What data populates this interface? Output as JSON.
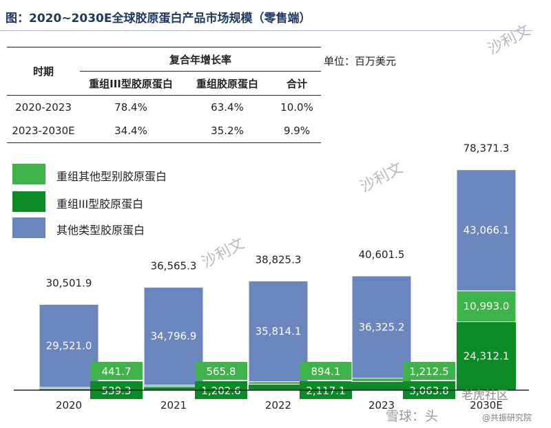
{
  "title": "图：2020~2030E全球胶原蛋白产品市场规模（零售端）",
  "unit": "单位：百万美元",
  "growth_table": {
    "period_header": "时期",
    "group_header": "复合年增长率",
    "columns": [
      "重组III型胶原蛋白",
      "重组胶原蛋白",
      "合计"
    ],
    "rows": [
      {
        "period": "2020-2023",
        "values": [
          "78.4%",
          "63.4%",
          "10.0%"
        ]
      },
      {
        "period": "2023-2030E",
        "values": [
          "34.4%",
          "35.2%",
          "9.9%"
        ]
      }
    ]
  },
  "colors": {
    "other_recombinant": "#3db34a",
    "type3": "#0c8a26",
    "other_types": "#6b86bd",
    "title": "#1f3864"
  },
  "chart_data": {
    "type": "bar",
    "stacked": true,
    "title": "2020~2030E全球胶原蛋白产品市场规模（零售端）",
    "ylabel": "百万美元",
    "categories": [
      "2020",
      "2021",
      "2022",
      "2023",
      "2030E"
    ],
    "series": [
      {
        "name": "重组III型胶原蛋白",
        "values": [
          539.3,
          1202.6,
          2117.1,
          3063.8,
          24312.1
        ],
        "labels": [
          "539.3",
          "1,202.6",
          "2,117.1",
          "3,063.8",
          "24,312.1"
        ]
      },
      {
        "name": "重组其他型别胶原蛋白",
        "values": [
          441.7,
          565.8,
          894.1,
          1212.5,
          10993.0
        ],
        "labels": [
          "441.7",
          "565.8",
          "894.1",
          "1,212.5",
          "10,993.0"
        ]
      },
      {
        "name": "其他类型胶原蛋白",
        "values": [
          29521.0,
          34796.9,
          35814.1,
          36325.2,
          43066.1
        ],
        "labels": [
          "29,521.0",
          "34,796.9",
          "35,814.1",
          "36,325.2",
          "43,066.1"
        ]
      }
    ],
    "totals": [
      30501.9,
      36565.3,
      38825.3,
      40601.5,
      78371.3
    ],
    "total_labels": [
      "30,501.9",
      "36,565.3",
      "38,825.3",
      "40,601.5",
      "78,371.3"
    ],
    "ylim": [
      0,
      80000
    ],
    "legend": [
      "重组其他型别胶原蛋白",
      "重组III型胶原蛋白",
      "其他类型胶原蛋白"
    ],
    "legend_position": "top-left",
    "grid": false
  },
  "watermark": {
    "brand": "沙利文",
    "forum": "老虎社区",
    "snowball": "雪球：头",
    "sub": "@共振研究院"
  }
}
